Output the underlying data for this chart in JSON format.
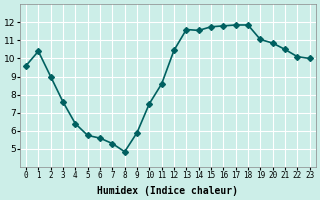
{
  "x": [
    0,
    1,
    2,
    3,
    4,
    5,
    6,
    7,
    8,
    9,
    10,
    11,
    12,
    13,
    14,
    15,
    16,
    17,
    18,
    19,
    20,
    21,
    22,
    23
  ],
  "y": [
    9.6,
    10.4,
    9.0,
    7.6,
    6.4,
    5.75,
    5.6,
    5.3,
    4.85,
    5.9,
    7.5,
    8.6,
    10.45,
    11.6,
    11.55,
    11.75,
    11.8,
    11.85,
    11.85,
    11.05,
    10.85,
    10.5,
    10.1,
    10.0
  ],
  "xlabel": "Humidex (Indice chaleur)",
  "ylim": [
    4,
    13
  ],
  "xlim": [
    -0.5,
    23.5
  ],
  "bg_color": "#cceee8",
  "line_color": "#006060",
  "grid_color": "#ffffff",
  "marker": "D",
  "markersize": 3,
  "linewidth": 1.2,
  "yticks": [
    5,
    6,
    7,
    8,
    9,
    10,
    11,
    12
  ],
  "xtick_labels": [
    "0",
    "1",
    "2",
    "3",
    "4",
    "5",
    "6",
    "7",
    "8",
    "9",
    "10",
    "11",
    "12",
    "13",
    "14",
    "15",
    "16",
    "17",
    "18",
    "19",
    "20",
    "21",
    "22",
    "23"
  ]
}
